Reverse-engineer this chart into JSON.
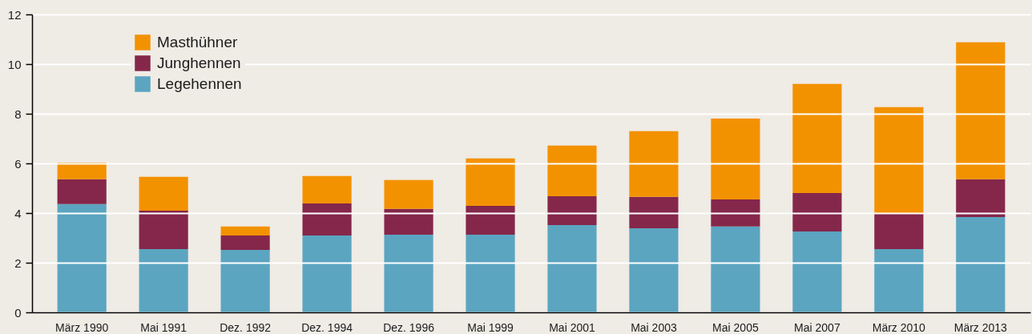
{
  "chart_data": {
    "type": "bar",
    "stacked": true,
    "categories": [
      "März 1990",
      "Mai 1991",
      "Dez. 1992",
      "Dez. 1994",
      "Dez. 1996",
      "Mai 1999",
      "Mai 2001",
      "Mai 2003",
      "Mai 2005",
      "Mai 2007",
      "März 2010",
      "März 2013"
    ],
    "series": [
      {
        "name": "Legehennen",
        "color": "#5ba5c1",
        "values": [
          4.36,
          2.55,
          2.52,
          3.1,
          3.13,
          3.13,
          3.52,
          3.39,
          3.46,
          3.26,
          2.55,
          3.84
        ]
      },
      {
        "name": "Junghennen",
        "color": "#85274a",
        "values": [
          1.0,
          1.55,
          0.58,
          1.29,
          1.04,
          1.16,
          1.16,
          1.26,
          1.09,
          1.55,
          1.45,
          1.52
        ]
      },
      {
        "name": "Masthühner",
        "color": "#f39200",
        "values": [
          0.67,
          1.36,
          0.36,
          1.1,
          1.16,
          1.91,
          2.04,
          2.65,
          3.26,
          4.39,
          4.27,
          5.52
        ]
      }
    ],
    "ylim": [
      0,
      12
    ],
    "yticks": [
      0,
      2,
      4,
      6,
      8,
      10,
      12
    ],
    "grid": "y",
    "legend": "top left"
  }
}
